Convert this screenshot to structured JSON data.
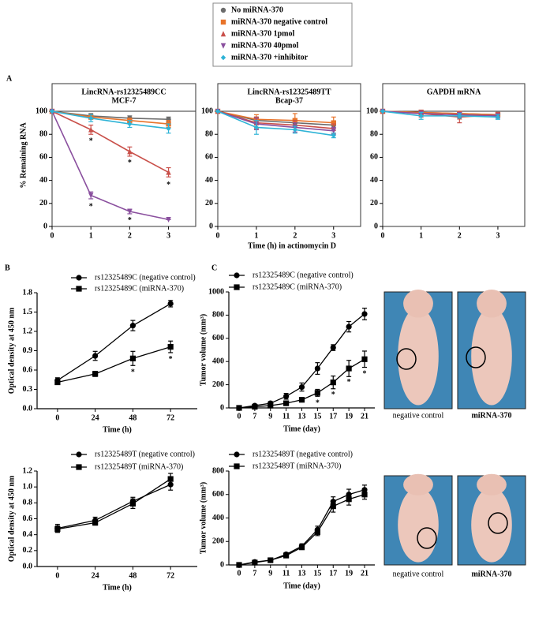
{
  "panel_labels": [
    "A",
    "B",
    "C"
  ],
  "photo_captions": [
    [
      "negative control",
      "miRNA-370"
    ],
    [
      "negative control",
      "miRNA-370"
    ]
  ],
  "chart_data": [
    {
      "type": "line",
      "title": "LincRNA-rs12325489CC",
      "subtitle": "MCF-7",
      "ylabel": "% Remaining RNA",
      "xlabel": "Time (h) in actinomycin D",
      "x": [
        0,
        1,
        2,
        3
      ],
      "xlim": [
        0,
        3.7
      ],
      "xticks": [
        0,
        1,
        2,
        3
      ],
      "ylim": [
        0,
        124
      ],
      "yticks": [
        0,
        20,
        40,
        60,
        80,
        100
      ],
      "hline": 100,
      "frame": true,
      "series": [
        {
          "name": "No miRNA-370",
          "color": "#6b6b6b",
          "marker": "circle",
          "values": [
            100,
            96,
            94,
            93
          ],
          "errors": [
            0,
            2,
            2,
            2
          ]
        },
        {
          "name": "miRNA-370 negative control",
          "color": "#e8732a",
          "marker": "square",
          "values": [
            100,
            95,
            92,
            89
          ],
          "errors": [
            0,
            2,
            2,
            3
          ]
        },
        {
          "name": "miRNA-370 1pmol",
          "color": "#c9504a",
          "marker": "triangle",
          "values": [
            100,
            84,
            65,
            47
          ],
          "errors": [
            0,
            4,
            4,
            4
          ]
        },
        {
          "name": "miRNA-370 40pmol",
          "color": "#8a4f9e",
          "marker": "triangle-down",
          "values": [
            100,
            27,
            13,
            6
          ],
          "errors": [
            0,
            3,
            2,
            0
          ]
        },
        {
          "name": "miRNA-370 +inhibitor",
          "color": "#2eb3d6",
          "marker": "diamond",
          "values": [
            100,
            94,
            89,
            85
          ],
          "errors": [
            0,
            3,
            3,
            4
          ]
        }
      ],
      "annotations": [
        {
          "x": 1,
          "y": 76,
          "text": "*"
        },
        {
          "x": 1,
          "y": 19,
          "text": "*"
        },
        {
          "x": 2,
          "y": 57,
          "text": "*"
        },
        {
          "x": 2,
          "y": 7,
          "text": "*"
        },
        {
          "x": 3,
          "y": 38,
          "text": "*"
        }
      ]
    },
    {
      "type": "line",
      "title": "LincRNA-rs12325489TT",
      "subtitle": "Bcap-37",
      "x": [
        0,
        1,
        2,
        3
      ],
      "xlim": [
        0,
        3.7
      ],
      "xticks": [
        0,
        1,
        2,
        3
      ],
      "ylim": [
        0,
        124
      ],
      "yticks": [
        0,
        20,
        40,
        60,
        80,
        100
      ],
      "hline": 100,
      "frame": true,
      "series": [
        {
          "color": "#6b6b6b",
          "marker": "circle",
          "values": [
            100,
            92,
            90,
            88
          ],
          "errors": [
            0,
            3,
            3,
            3
          ]
        },
        {
          "color": "#e8732a",
          "marker": "square",
          "values": [
            100,
            93,
            92,
            90
          ],
          "errors": [
            0,
            4,
            6,
            5
          ]
        },
        {
          "color": "#c9504a",
          "marker": "triangle",
          "values": [
            100,
            90,
            88,
            85
          ],
          "errors": [
            0,
            5,
            4,
            4
          ]
        },
        {
          "color": "#8a4f9e",
          "marker": "triangle-down",
          "values": [
            100,
            89,
            86,
            83
          ],
          "errors": [
            0,
            5,
            4,
            3
          ]
        },
        {
          "color": "#2eb3d6",
          "marker": "diamond",
          "values": [
            100,
            86,
            84,
            79
          ],
          "errors": [
            0,
            6,
            3,
            2
          ]
        }
      ]
    },
    {
      "type": "line",
      "title": "GAPDH mRNA",
      "x": [
        0,
        1,
        2,
        3
      ],
      "xlim": [
        0,
        3.7
      ],
      "xticks": [
        0,
        1,
        2,
        3
      ],
      "ylim": [
        0,
        124
      ],
      "yticks": [
        0,
        20,
        40,
        60,
        80,
        100
      ],
      "hline": 100,
      "frame": true,
      "series": [
        {
          "color": "#6b6b6b",
          "marker": "circle",
          "values": [
            100,
            99,
            98,
            97
          ],
          "errors": [
            0,
            2,
            2,
            2
          ]
        },
        {
          "color": "#e8732a",
          "marker": "square",
          "values": [
            100,
            99,
            98,
            97
          ],
          "errors": [
            0,
            2,
            2,
            2
          ]
        },
        {
          "color": "#c9504a",
          "marker": "triangle",
          "values": [
            100,
            98,
            95,
            97
          ],
          "errors": [
            0,
            3,
            5,
            2
          ]
        },
        {
          "color": "#8a4f9e",
          "marker": "triangle-down",
          "values": [
            100,
            98,
            97,
            96
          ],
          "errors": [
            0,
            2,
            2,
            2
          ]
        },
        {
          "color": "#2eb3d6",
          "marker": "diamond",
          "values": [
            100,
            96,
            96,
            95
          ],
          "errors": [
            0,
            3,
            2,
            2
          ]
        }
      ]
    },
    {
      "type": "line",
      "ylabel": "Optical density at 450 nm",
      "xlabel": "Time (h)",
      "x": [
        0,
        24,
        48,
        72
      ],
      "xlim": [
        -13,
        89
      ],
      "xticks": [
        0,
        24,
        48,
        72
      ],
      "ylim": [
        0,
        1.8
      ],
      "yticks": [
        {
          "value": 0,
          "label": "0.0"
        },
        0.3,
        0.6,
        0.9,
        1.2,
        1.5,
        1.8
      ],
      "series": [
        {
          "name": "rs12325489C (negative control)",
          "color": "#000000",
          "marker": "circle",
          "values": [
            0.44,
            0.82,
            1.29,
            1.63
          ],
          "errors": [
            0.04,
            0.07,
            0.08,
            0.05
          ]
        },
        {
          "name": "rs12325489C (miRNA-370)",
          "color": "#000000",
          "marker": "square",
          "values": [
            0.41,
            0.54,
            0.78,
            0.96
          ],
          "errors": [
            0.03,
            0.04,
            0.11,
            0.09
          ]
        }
      ],
      "annotations": [
        {
          "x": 48,
          "y": 0.6,
          "text": "*"
        },
        {
          "x": 72,
          "y": 0.8,
          "text": "*"
        }
      ]
    },
    {
      "type": "line",
      "ylabel": "Tumor volume (mm³)",
      "xlabel": "Time (day)",
      "categories": [
        "0",
        "7",
        "9",
        "11",
        "13",
        "15",
        "17",
        "19",
        "21"
      ],
      "ylim": [
        0,
        1000
      ],
      "yticks": [
        0,
        200,
        400,
        600,
        800,
        1000
      ],
      "series": [
        {
          "name": "rs12325489C (negative control)",
          "color": "#000000",
          "marker": "circle",
          "values": [
            0,
            20,
            40,
            100,
            180,
            340,
            520,
            700,
            810
          ],
          "errors": [
            0,
            10,
            15,
            25,
            35,
            50,
            25,
            45,
            50
          ]
        },
        {
          "name": "rs12325489C (miRNA-370)",
          "color": "#000000",
          "marker": "square",
          "values": [
            0,
            10,
            20,
            40,
            70,
            130,
            220,
            340,
            420
          ],
          "errors": [
            0,
            5,
            10,
            10,
            15,
            30,
            55,
            70,
            70
          ]
        }
      ],
      "annotations": [
        {
          "x": "15",
          "y": 60,
          "text": "*"
        },
        {
          "x": "17",
          "y": 130,
          "text": "*"
        },
        {
          "x": "19",
          "y": 240,
          "text": "*"
        },
        {
          "x": "21",
          "y": 310,
          "text": "*"
        }
      ]
    },
    {
      "type": "line",
      "ylabel": "Optical density at 450 nm",
      "xlabel": "Time (h)",
      "x": [
        0,
        24,
        48,
        72
      ],
      "xlim": [
        -13,
        89
      ],
      "xticks": [
        0,
        24,
        48,
        72
      ],
      "ylim": [
        0,
        1.2
      ],
      "yticks": [
        {
          "value": 0,
          "label": "0.0"
        },
        0.2,
        0.4,
        0.6,
        0.8,
        {
          "value": 1,
          "label": "1.0"
        },
        1.2
      ],
      "series": [
        {
          "name": "rs12325489T (negative control)",
          "color": "#000000",
          "marker": "circle",
          "values": [
            0.48,
            0.58,
            0.82,
            1.03
          ],
          "errors": [
            0.05,
            0.04,
            0.05,
            0.07
          ]
        },
        {
          "name": "rs12325489T (miRNA-370)",
          "color": "#000000",
          "marker": "square",
          "values": [
            0.47,
            0.55,
            0.79,
            1.1
          ],
          "errors": [
            0.04,
            0.03,
            0.06,
            0.07
          ]
        }
      ]
    },
    {
      "type": "line",
      "ylabel": "Tumor volume (mm³)",
      "xlabel": "Time (day)",
      "categories": [
        "0",
        "7",
        "9",
        "11",
        "13",
        "15",
        "17",
        "19",
        "21"
      ],
      "ylim": [
        0,
        800
      ],
      "yticks": [
        0,
        200,
        400,
        600,
        800
      ],
      "series": [
        {
          "name": "rs12325489T (negative control)",
          "color": "#000000",
          "marker": "circle",
          "values": [
            0,
            25,
            40,
            90,
            160,
            300,
            540,
            600,
            640
          ],
          "errors": [
            0,
            5,
            8,
            15,
            20,
            30,
            40,
            45,
            40
          ]
        },
        {
          "name": "rs12325489T (miRNA-370)",
          "color": "#000000",
          "marker": "square",
          "values": [
            0,
            20,
            40,
            80,
            150,
            280,
            500,
            560,
            600
          ],
          "errors": [
            0,
            5,
            8,
            15,
            15,
            30,
            50,
            50,
            40
          ]
        }
      ]
    }
  ]
}
